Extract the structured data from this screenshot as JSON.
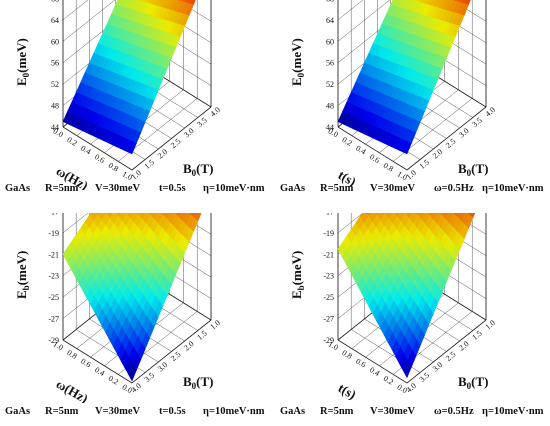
{
  "chart_data": [
    {
      "type": "surface3d",
      "zlabel": "E0(meV)",
      "zlabel_base": "E",
      "zlabel_sub": "0",
      "zlabel_unit": "(meV)",
      "xlabel": "ω(Hz)",
      "ylabel_base": "B",
      "ylabel_sub": "0",
      "ylabel_unit": "(T)",
      "zticks": [
        "44",
        "48",
        "52",
        "56",
        "60",
        "64",
        "68",
        "72"
      ],
      "xticks": [
        "0.0",
        "0.2",
        "0.4",
        "0.6",
        "0.8",
        "1.0"
      ],
      "yticks": [
        "1.0",
        "1.5",
        "2.0",
        "2.5",
        "3.0",
        "3.5",
        "4.0"
      ],
      "zlim": [
        44,
        72
      ],
      "corners": {
        "x0y0": 45,
        "x1y0": 47,
        "x0y1": 66,
        "x1y1": 71
      },
      "caption": [
        "GaAs",
        "R=5nm",
        "V=30meV",
        "t=0.5s",
        "η=10meV·nm"
      ]
    },
    {
      "type": "surface3d",
      "zlabel_base": "E",
      "zlabel_sub": "0",
      "zlabel_unit": "(meV)",
      "xlabel": "t(s)",
      "ylabel_base": "B",
      "ylabel_sub": "0",
      "ylabel_unit": "(T)",
      "zticks": [
        "44",
        "48",
        "52",
        "56",
        "60",
        "64",
        "68",
        "72"
      ],
      "xticks": [
        "0.0",
        "0.2",
        "0.4",
        "0.6",
        "0.8",
        "1.0"
      ],
      "yticks": [
        "1.0",
        "1.5",
        "2.0",
        "2.5",
        "3.0",
        "3.5",
        "4.0"
      ],
      "zlim": [
        44,
        72
      ],
      "corners": {
        "x0y0": 45,
        "x1y0": 47,
        "x0y1": 66,
        "x1y1": 71
      },
      "caption": [
        "GaAs",
        "R=5nm",
        "V=30meV",
        "ω=0.5Hz",
        "η=10meV·nm"
      ]
    },
    {
      "type": "surface3d",
      "zlabel_base": "E",
      "zlabel_sub": "b",
      "zlabel_unit": "(meV)",
      "xlabel": "ω(Hz)",
      "ylabel_base": "B",
      "ylabel_sub": "0",
      "ylabel_unit": "(T)",
      "zticks": [
        "-29",
        "-27",
        "-25",
        "-23",
        "-21",
        "-19",
        "-17",
        "-15"
      ],
      "xticks": [
        "1.0",
        "0.8",
        "0.6",
        "0.4",
        "0.2",
        "0.0"
      ],
      "yticks": [
        "4.0",
        "3.5",
        "3.0",
        "2.5",
        "2.0",
        "1.5",
        "1.0"
      ],
      "zlim": [
        -29,
        -15
      ],
      "corners": {
        "x0y0": -21,
        "x1y0": -28.8,
        "x0y1": -16,
        "x1y1": -16.8
      },
      "caption": [
        "GaAs",
        "R=5nm",
        "V=30meV",
        "t=0.5s",
        "η=10meV·nm"
      ]
    },
    {
      "type": "surface3d",
      "zlabel_base": "E",
      "zlabel_sub": "b",
      "zlabel_unit": "(meV)",
      "xlabel": "t(s)",
      "ylabel_base": "B",
      "ylabel_sub": "0",
      "ylabel_unit": "(T)",
      "zticks": [
        "-29",
        "-27",
        "-25",
        "-23",
        "-21",
        "-19",
        "-17",
        "-15"
      ],
      "xticks": [
        "1.0",
        "0.8",
        "0.6",
        "0.4",
        "0.2",
        "0.0"
      ],
      "yticks": [
        "4.0",
        "3.5",
        "3.0",
        "2.5",
        "2.0",
        "1.5",
        "1.0"
      ],
      "zlim": [
        -29,
        -15
      ],
      "corners": {
        "x0y0": -20.5,
        "x1y0": -28.5,
        "x0y1": -15.5,
        "x1y1": -16.5
      },
      "caption": [
        "GaAs",
        "R=5nm",
        "V=30meV",
        "ω=0.5Hz",
        "η=10meV·nm"
      ]
    }
  ]
}
